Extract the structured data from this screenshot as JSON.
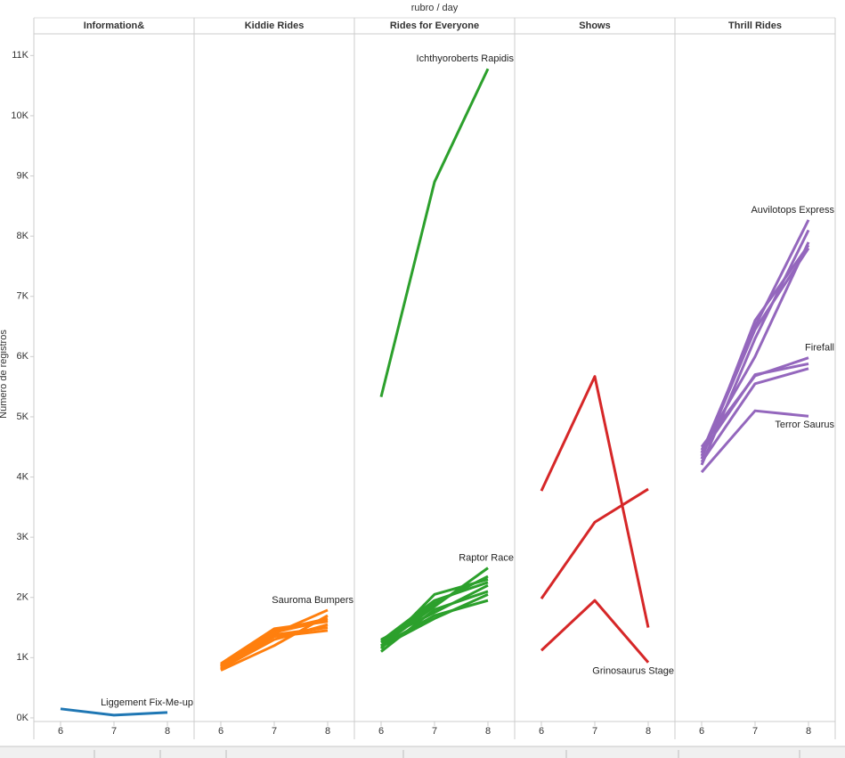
{
  "chart_data": {
    "type": "line",
    "title": "rubro / day",
    "y_label": "Número de registros",
    "x": [
      6,
      7,
      8
    ],
    "xlim": [
      5.5,
      8.5
    ],
    "xticks": [
      6,
      7,
      8
    ],
    "ylim": [
      -60,
      11360
    ],
    "yticks": [
      {
        "value": 0,
        "label": "0K"
      },
      {
        "value": 1000,
        "label": "1K"
      },
      {
        "value": 2000,
        "label": "2K"
      },
      {
        "value": 3000,
        "label": "3K"
      },
      {
        "value": 4000,
        "label": "4K"
      },
      {
        "value": 5000,
        "label": "5K"
      },
      {
        "value": 6000,
        "label": "6K"
      },
      {
        "value": 7000,
        "label": "7K"
      },
      {
        "value": 8000,
        "label": "8K"
      },
      {
        "value": 9000,
        "label": "9K"
      },
      {
        "value": 10000,
        "label": "10K"
      },
      {
        "value": 11000,
        "label": "11K"
      }
    ],
    "panels": [
      {
        "name": "Information&",
        "color": "#1f77b4",
        "series": [
          {
            "name": "Liggement Fix-Me-up",
            "values": [
              150,
              45,
              90
            ]
          }
        ]
      },
      {
        "name": "Kiddie Rides",
        "color": "#ff7f0e",
        "series": [
          {
            "values": [
              880,
              1450,
              1650
            ]
          },
          {
            "values": [
              820,
              1300,
              1550
            ]
          },
          {
            "values": [
              790,
              1200,
              1700
            ]
          },
          {
            "values": [
              900,
              1480,
              1600
            ]
          },
          {
            "values": [
              840,
              1350,
              1450
            ]
          },
          {
            "values": [
              800,
              1380,
              1500
            ]
          },
          {
            "values": [
              860,
              1420,
              1620
            ]
          },
          {
            "name": "Sauroma Bumpers",
            "values": [
              850,
              1400,
              1790
            ]
          }
        ]
      },
      {
        "name": "Rides for Everyone",
        "color": "#2ca02c",
        "series": [
          {
            "name": "Ichthyoroberts Rapidis",
            "values": [
              5330,
              8900,
              10780
            ]
          },
          {
            "values": [
              1150,
              2050,
              2300
            ]
          },
          {
            "values": [
              1300,
              1750,
              2200
            ]
          },
          {
            "values": [
              1250,
              1900,
              2350
            ]
          },
          {
            "values": [
              1100,
              1800,
              2100
            ]
          },
          {
            "values": [
              1200,
              1700,
              1950
            ]
          },
          {
            "values": [
              1280,
              1950,
              2250
            ]
          },
          {
            "values": [
              1180,
              1650,
              2050
            ]
          },
          {
            "name": "Raptor Race",
            "values": [
              1200,
              1850,
              2490
            ]
          }
        ]
      },
      {
        "name": "Shows",
        "color": "#d62728",
        "series": [
          {
            "values": [
              3770,
              5670,
              1500
            ]
          },
          {
            "values": [
              1980,
              3250,
              3800
            ]
          },
          {
            "name": "Grinosaurus Stage",
            "values": [
              1120,
              1950,
              920
            ]
          }
        ]
      },
      {
        "name": "Thrill Rides",
        "color": "#9467bd",
        "series": [
          {
            "name": "Auvilotops Express",
            "values": [
              4400,
              6500,
              8270
            ]
          },
          {
            "values": [
              4300,
              6600,
              7850
            ]
          },
          {
            "values": [
              4200,
              6300,
              8100
            ]
          },
          {
            "values": [
              4450,
              6000,
              7900
            ]
          },
          {
            "values": [
              4350,
              6450,
              7800
            ]
          },
          {
            "values": [
              4250,
              5550,
              5800
            ]
          },
          {
            "values": [
              4400,
              5700,
              5880
            ]
          },
          {
            "name": "Firefall",
            "values": [
              4500,
              5680,
              5980
            ]
          },
          {
            "name": "Terror Saurus",
            "values": [
              4080,
              5100,
              5010
            ]
          }
        ]
      }
    ]
  }
}
